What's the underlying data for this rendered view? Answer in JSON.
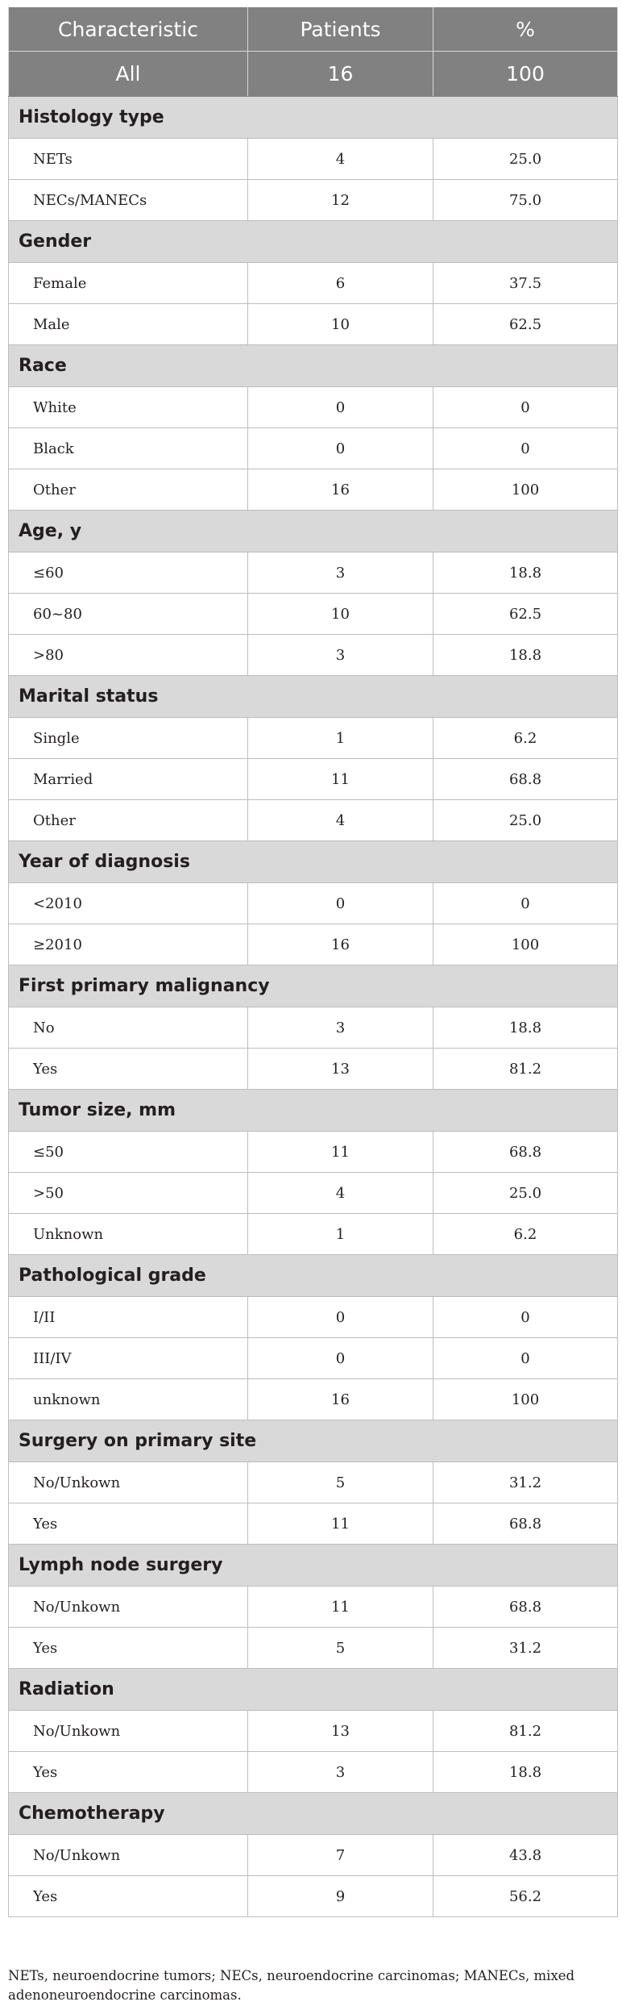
{
  "header": {
    "characteristic": "Characteristic",
    "patients": "Patients",
    "percent": "%"
  },
  "all_row": {
    "label": "All",
    "patients": "16",
    "percent": "100"
  },
  "sections": [
    {
      "title": "Histology type",
      "rows": [
        {
          "label": "NETs",
          "patients": "4",
          "percent": "25.0"
        },
        {
          "label": "NECs/MANECs",
          "patients": "12",
          "percent": "75.0"
        }
      ]
    },
    {
      "title": "Gender",
      "rows": [
        {
          "label": "Female",
          "patients": "6",
          "percent": "37.5"
        },
        {
          "label": "Male",
          "patients": "10",
          "percent": "62.5"
        }
      ]
    },
    {
      "title": "Race",
      "rows": [
        {
          "label": "White",
          "patients": "0",
          "percent": "0"
        },
        {
          "label": "Black",
          "patients": "0",
          "percent": "0"
        },
        {
          "label": "Other",
          "patients": "16",
          "percent": "100"
        }
      ]
    },
    {
      "title": "Age, y",
      "rows": [
        {
          "label": "≤60",
          "patients": "3",
          "percent": "18.8"
        },
        {
          "label": "60~80",
          "patients": "10",
          "percent": "62.5"
        },
        {
          "label": ">80",
          "patients": "3",
          "percent": "18.8"
        }
      ]
    },
    {
      "title": "Marital status",
      "rows": [
        {
          "label": "Single",
          "patients": "1",
          "percent": "6.2"
        },
        {
          "label": "Married",
          "patients": "11",
          "percent": "68.8"
        },
        {
          "label": "Other",
          "patients": "4",
          "percent": "25.0"
        }
      ]
    },
    {
      "title": "Year of diagnosis",
      "rows": [
        {
          "label": "<2010",
          "patients": "0",
          "percent": "0"
        },
        {
          "label": "≥2010",
          "patients": "16",
          "percent": "100"
        }
      ]
    },
    {
      "title": "First primary malignancy",
      "rows": [
        {
          "label": "No",
          "patients": "3",
          "percent": "18.8"
        },
        {
          "label": "Yes",
          "patients": "13",
          "percent": "81.2"
        }
      ]
    },
    {
      "title": "Tumor size, mm",
      "rows": [
        {
          "label": "≤50",
          "patients": "11",
          "percent": "68.8"
        },
        {
          "label": ">50",
          "patients": "4",
          "percent": "25.0"
        },
        {
          "label": "Unknown",
          "patients": "1",
          "percent": "6.2"
        }
      ]
    },
    {
      "title": "Pathological grade",
      "rows": [
        {
          "label": "I/II",
          "patients": "0",
          "percent": "0"
        },
        {
          "label": "III/IV",
          "patients": "0",
          "percent": "0"
        },
        {
          "label": "unknown",
          "patients": "16",
          "percent": "100"
        }
      ]
    },
    {
      "title": "Surgery on primary site",
      "rows": [
        {
          "label": "No/Unkown",
          "patients": "5",
          "percent": "31.2"
        },
        {
          "label": "Yes",
          "patients": "11",
          "percent": "68.8"
        }
      ]
    },
    {
      "title": "Lymph node surgery",
      "rows": [
        {
          "label": "No/Unkown",
          "patients": "11",
          "percent": "68.8"
        },
        {
          "label": "Yes",
          "patients": "5",
          "percent": "31.2"
        }
      ]
    },
    {
      "title": "Radiation",
      "rows": [
        {
          "label": "No/Unkown",
          "patients": "13",
          "percent": "81.2"
        },
        {
          "label": "Yes",
          "patients": "3",
          "percent": "18.8"
        }
      ]
    },
    {
      "title": "Chemotherapy",
      "rows": [
        {
          "label": "No/Unkown",
          "patients": "7",
          "percent": "43.8"
        },
        {
          "label": "Yes",
          "patients": "9",
          "percent": "56.2"
        }
      ]
    }
  ],
  "footnote": "NETs, neuroendocrine tumors; NECs, neuroendocrine carcinomas; MANECs, mixed adenoneuroendocrine carcinomas."
}
